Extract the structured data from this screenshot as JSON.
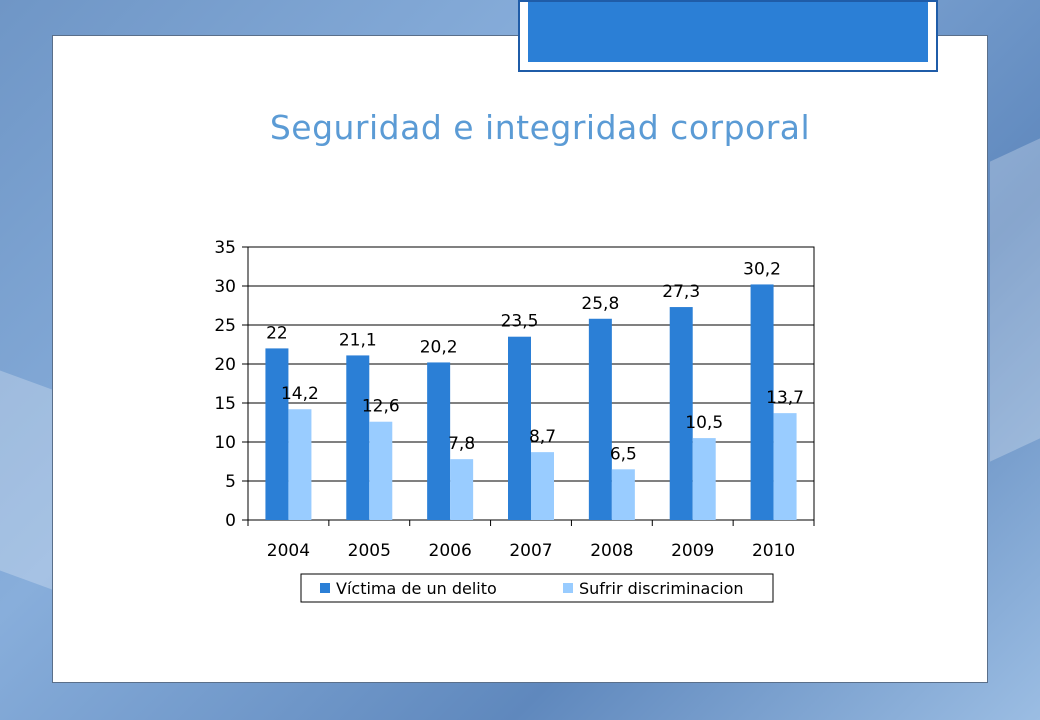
{
  "title": "Seguridad e integridad corporal",
  "colors": {
    "series1": "#2b7fd6",
    "series2": "#99ccff",
    "title": "#5b9bd5",
    "accent": "#2b7fd6"
  },
  "chart_data": {
    "type": "bar",
    "categories": [
      "2004",
      "2005",
      "2006",
      "2007",
      "2008",
      "2009",
      "2010"
    ],
    "series": [
      {
        "name": "Víctima de un delito",
        "values": [
          22,
          21.1,
          20.2,
          23.5,
          25.8,
          27.3,
          30.2
        ],
        "labels": [
          "22",
          "21,1",
          "20,2",
          "23,5",
          "25,8",
          "27,3",
          "30,2"
        ]
      },
      {
        "name": "Sufrir discriminacion",
        "values": [
          14.2,
          12.6,
          7.8,
          8.7,
          6.5,
          10.5,
          13.7
        ],
        "labels": [
          "14,2",
          "12,6",
          "7,8",
          "8,7",
          "6,5",
          "10,5",
          "13,7"
        ]
      }
    ],
    "yticks": [
      "0",
      "5",
      "10",
      "15",
      "20",
      "25",
      "30",
      "35"
    ],
    "ylim": [
      0,
      35
    ],
    "grid": true,
    "legend_position": "bottom"
  }
}
